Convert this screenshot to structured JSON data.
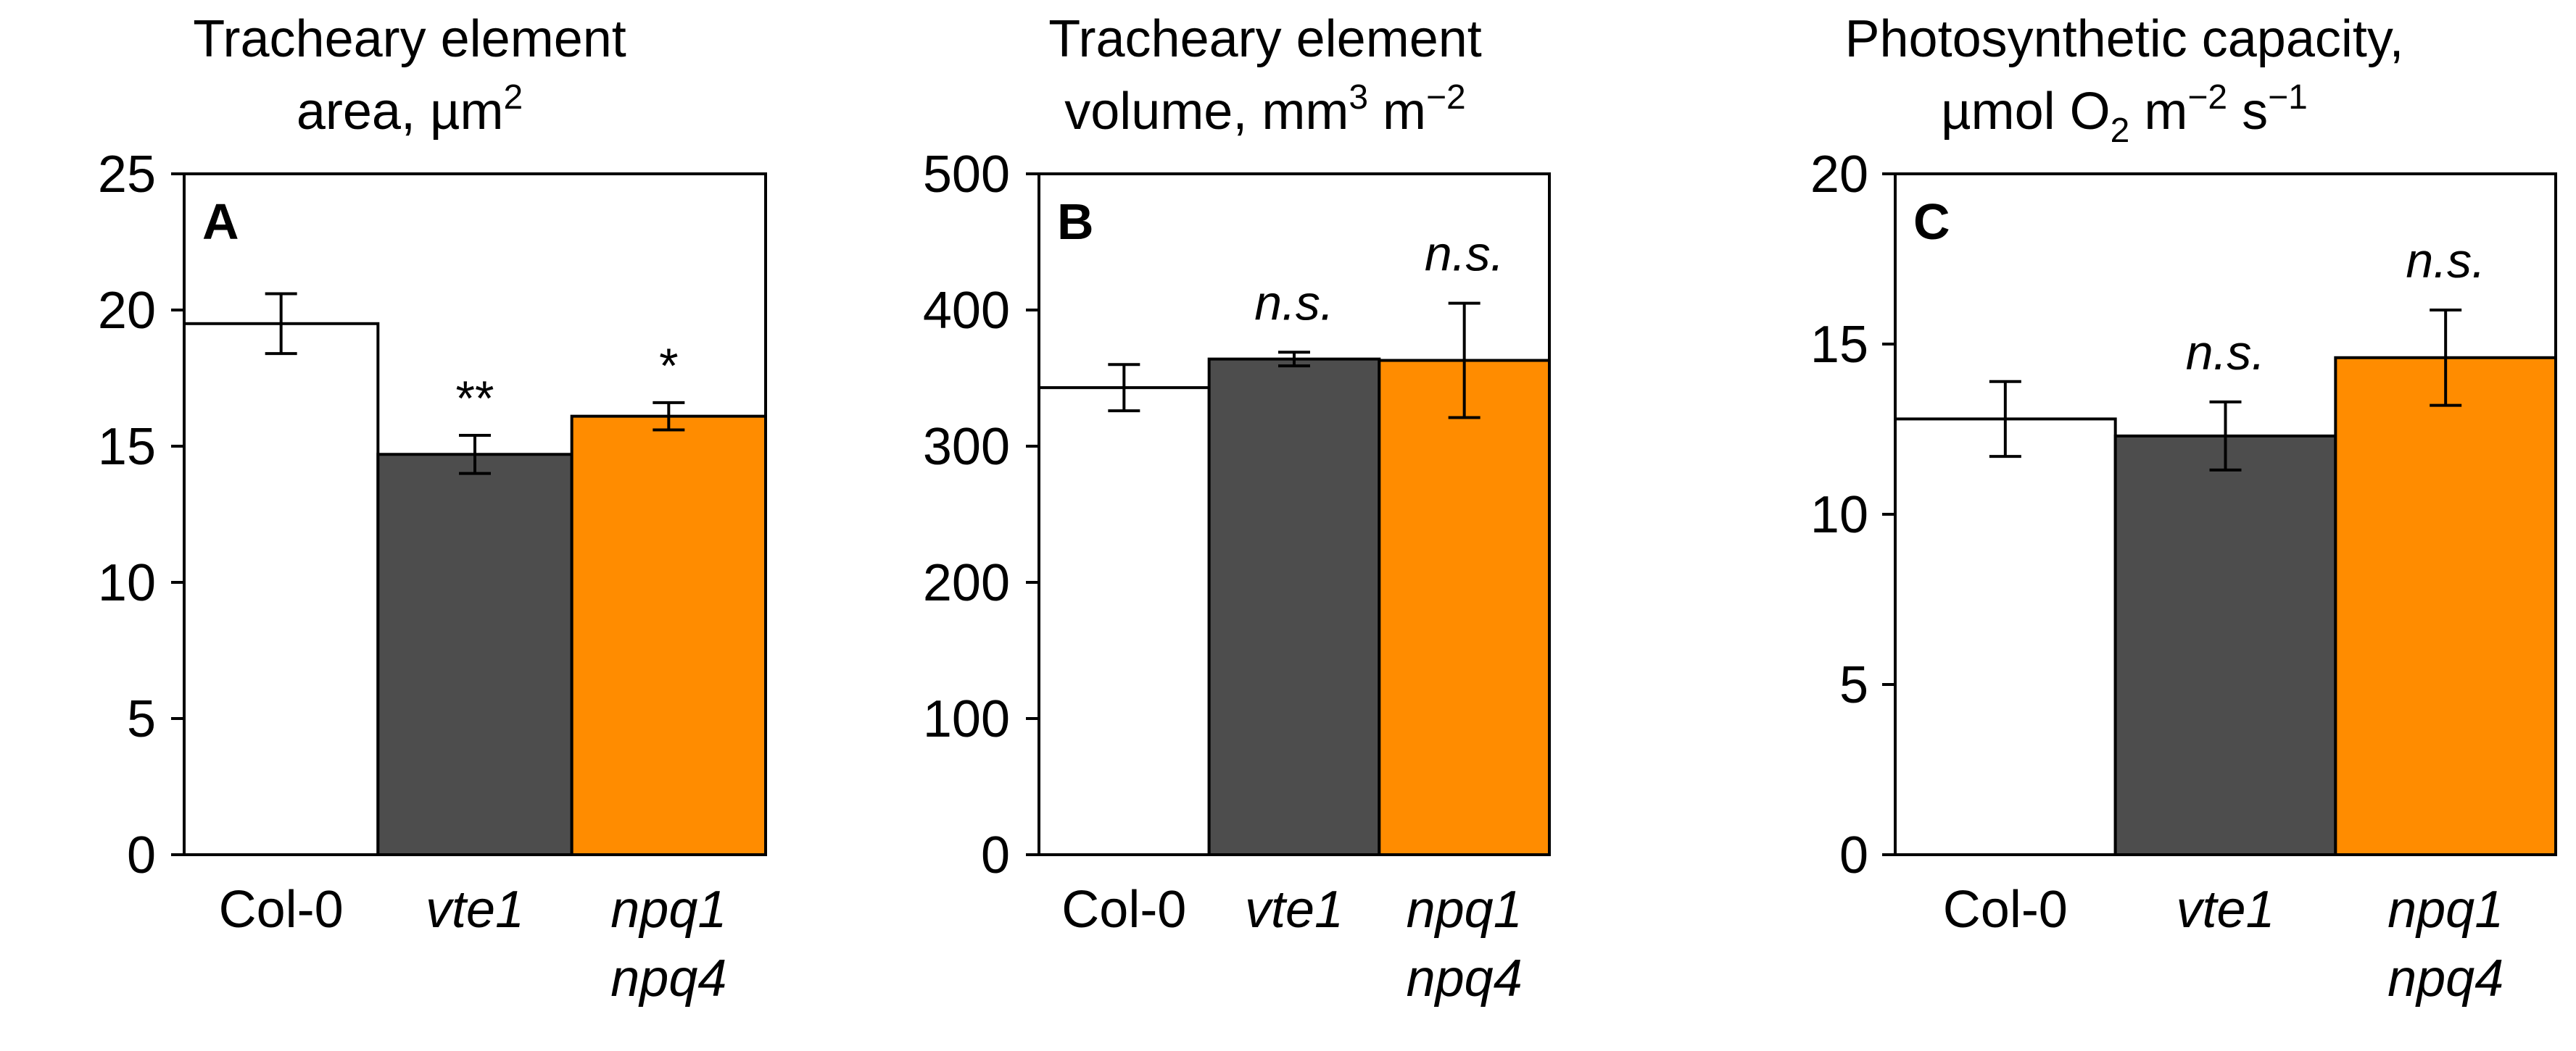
{
  "categories": [
    "Col-0",
    "vte1",
    "npq1 npq4"
  ],
  "colors": {
    "Col-0": "#ffffff",
    "vte1": "#4d4d4d",
    "npq1 npq4": "#ff8c00"
  },
  "chart_data": [
    {
      "type": "bar",
      "panel_label": "A",
      "title_lines": [
        "Tracheary element",
        "area, µm",
        "2"
      ],
      "ylim": [
        0,
        25
      ],
      "yticks": [
        0,
        5,
        10,
        15,
        20,
        25
      ],
      "categories": [
        "Col-0",
        "vte1",
        "npq1 npq4"
      ],
      "values": [
        19.5,
        14.7,
        16.1
      ],
      "errors": [
        1.1,
        0.7,
        0.5
      ],
      "annotations": [
        "",
        "**",
        "*"
      ],
      "grid": false
    },
    {
      "type": "bar",
      "panel_label": "B",
      "title_lines": [
        "Tracheary element",
        "volume, mm",
        "3",
        " m",
        "−2"
      ],
      "ylim": [
        0,
        500
      ],
      "yticks": [
        0,
        100,
        200,
        300,
        400,
        500
      ],
      "categories": [
        "Col-0",
        "vte1",
        "npq1 npq4"
      ],
      "values": [
        343,
        364,
        363
      ],
      "errors": [
        17,
        5,
        42
      ],
      "annotations": [
        "",
        "n.s.",
        "n.s."
      ],
      "grid": false
    },
    {
      "type": "bar",
      "panel_label": "C",
      "title_lines": [
        "Photosynthetic capacity,",
        "µmol O",
        "2",
        " m",
        "−2",
        " s",
        "−1"
      ],
      "ylim": [
        0,
        20
      ],
      "yticks": [
        0,
        5,
        10,
        15,
        20
      ],
      "categories": [
        "Col-0",
        "vte1",
        "npq1 npq4"
      ],
      "values": [
        12.8,
        12.3,
        14.6
      ],
      "errors": [
        1.1,
        1.0,
        1.4
      ],
      "annotations": [
        "",
        "n.s.",
        "n.s."
      ],
      "grid": false
    }
  ]
}
